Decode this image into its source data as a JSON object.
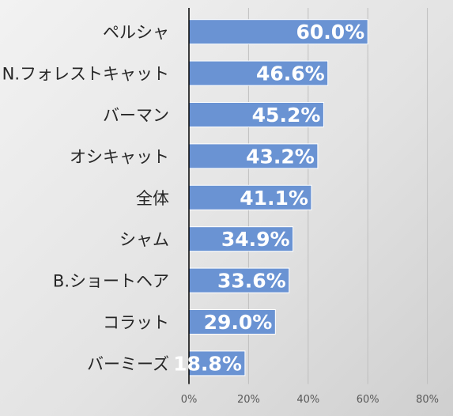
{
  "chart_data": {
    "type": "bar",
    "orientation": "horizontal",
    "categories": [
      "ペルシャ",
      "N.フォレストキャット",
      "バーマン",
      "オシキャット",
      "全体",
      "シャム",
      "B.ショートヘア",
      "コラット",
      "バーミーズ"
    ],
    "values": [
      60.0,
      46.6,
      45.2,
      43.2,
      41.1,
      34.9,
      33.6,
      29.0,
      18.8
    ],
    "data_labels": [
      "60.0%",
      "46.6%",
      "45.2%",
      "43.2%",
      "41.1%",
      "34.9%",
      "33.6%",
      "29.0%",
      "18.8%"
    ],
    "x_ticks": [
      "0%",
      "20%",
      "40%",
      "60%",
      "80%"
    ],
    "xlim": [
      0,
      80
    ],
    "grid": true,
    "bar_color": "#6a93d3",
    "title": "",
    "xlabel": "",
    "ylabel": ""
  }
}
